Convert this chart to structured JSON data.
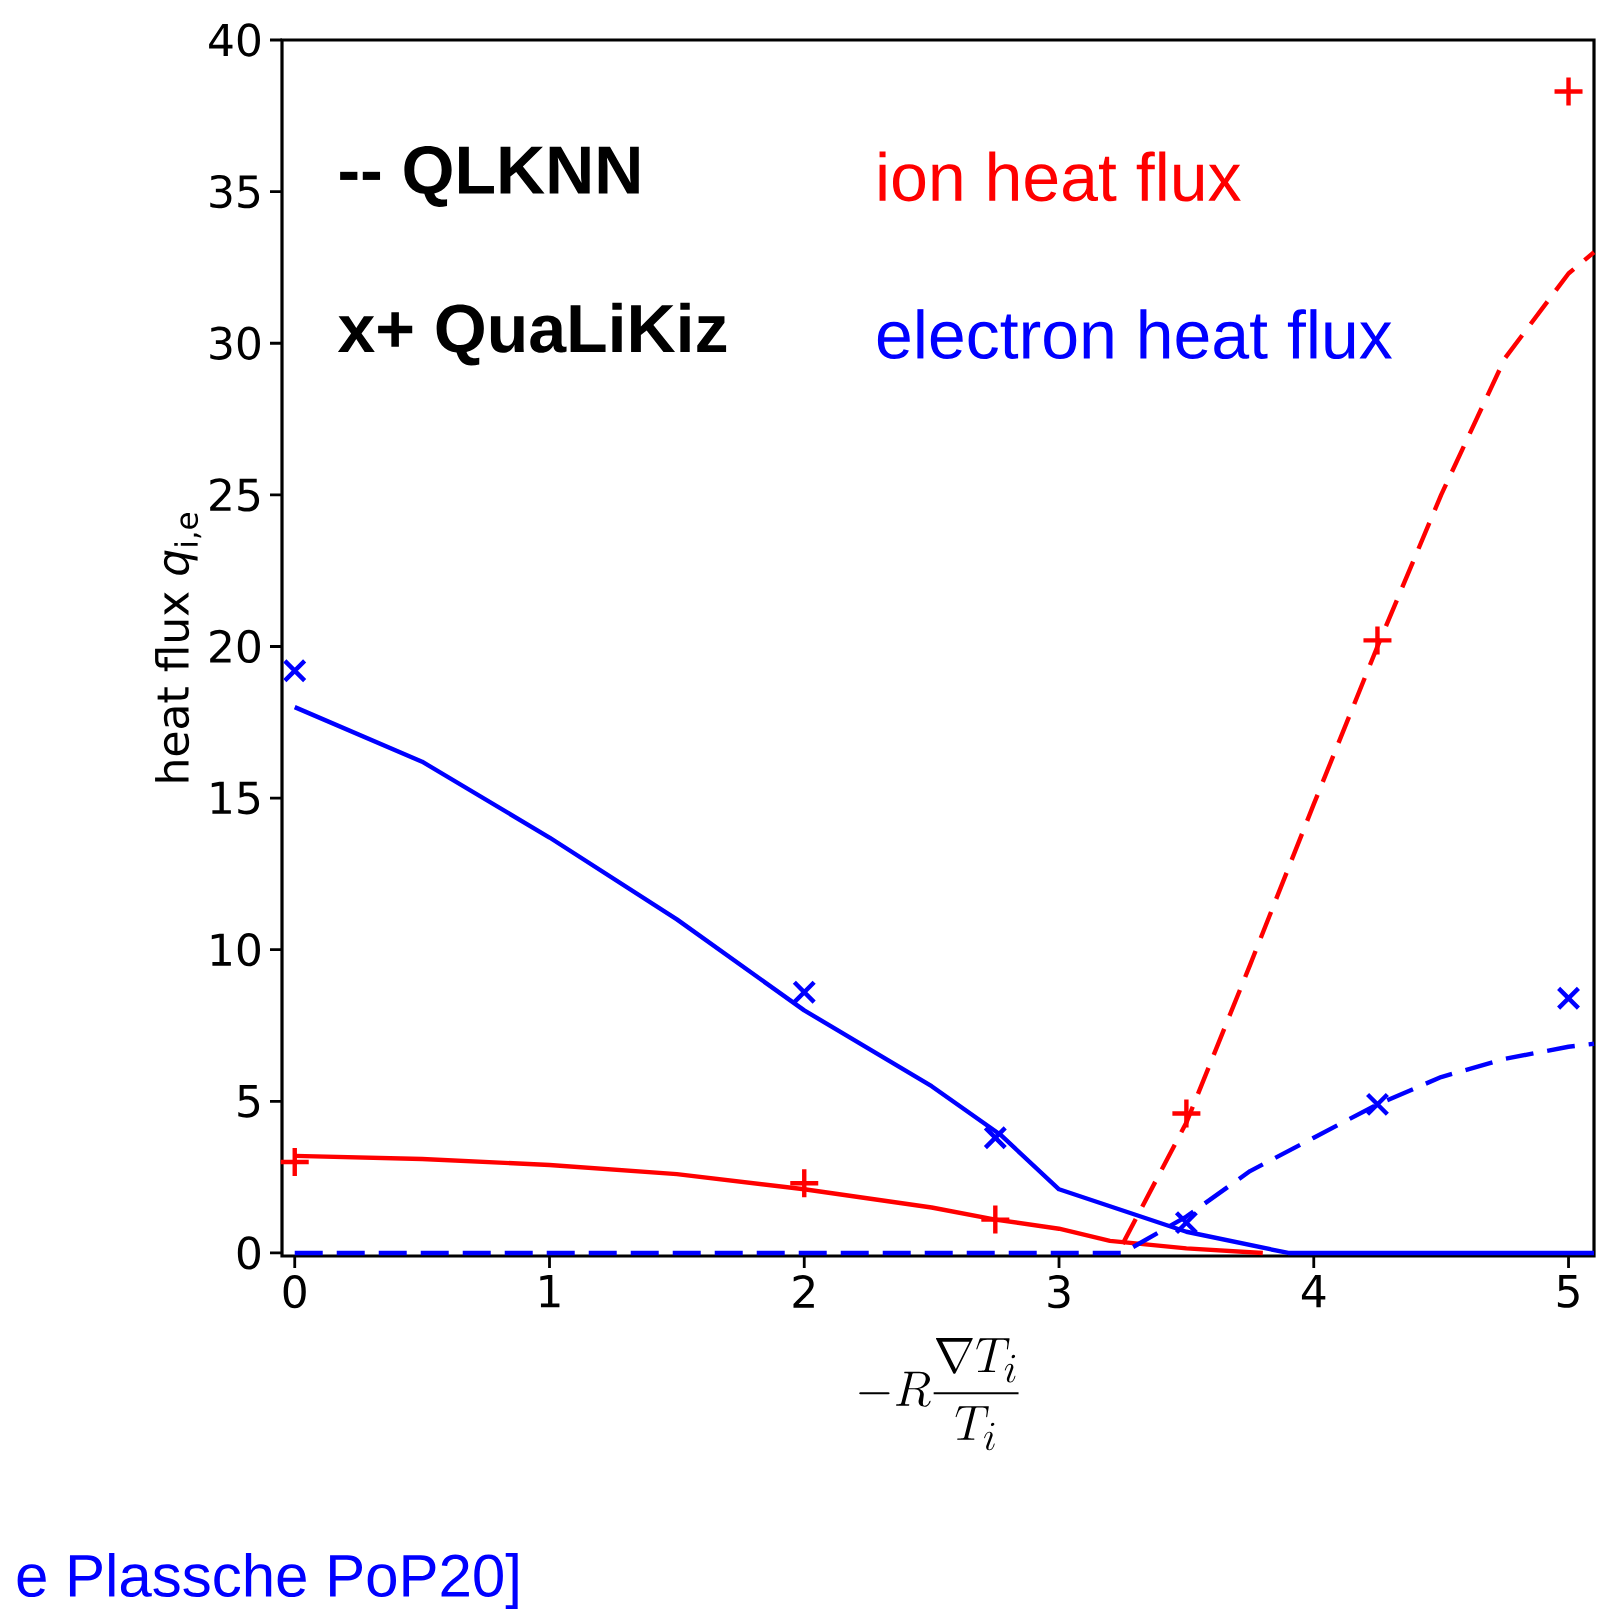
{
  "chart_data": {
    "type": "line",
    "xlabel": "-R\\frac{\\nabla T_i}{T_i}",
    "ylabel": "heat flux *q*$_{i,e}$",
    "xlim": [
      -0.05,
      5.1
    ],
    "ylim": [
      -0.1,
      40
    ],
    "xticks": [
      0,
      1,
      2,
      3,
      4,
      5
    ],
    "yticks": [
      0,
      5,
      10,
      15,
      20,
      25,
      30,
      35,
      40
    ],
    "annotations": [
      "-- QLKNN",
      "x+ QuaLiKiz",
      "e Plassche PoP20]"
    ],
    "series": [
      {
        "color": "#ff0000",
        "line_style": "solid",
        "x": [
          0,
          0.5,
          1,
          1.5,
          2,
          2.5,
          2.75,
          3,
          3.2,
          3.5,
          3.8
        ],
        "values": [
          3.2,
          3.1,
          2.9,
          2.6,
          2.1,
          1.5,
          1.1,
          0.8,
          0.4,
          0.15,
          0
        ]
      },
      {
        "color": "#ff0000",
        "line_style": "dashed",
        "x": [
          3.25,
          3.5,
          3.75,
          4,
          4.25,
          4.5,
          4.75,
          5,
          5.1
        ],
        "values": [
          0.3,
          4.3,
          9.5,
          14.8,
          20,
          25,
          29.5,
          32.3,
          33
        ]
      },
      {
        "color": "#0000ff",
        "line_style": "solid",
        "x": [
          0,
          0.5,
          1,
          1.5,
          2,
          2.5,
          2.77,
          3,
          3.5,
          3.9,
          4,
          4.5,
          5,
          5.1
        ],
        "values": [
          18,
          16.2,
          13.7,
          11,
          8,
          5.5,
          3.9,
          2.1,
          0.7,
          0,
          0,
          0,
          0,
          0
        ]
      },
      {
        "color": "#0000ff",
        "line_style": "dashed",
        "x": [
          0,
          1,
          2,
          3,
          3.25,
          3.5,
          3.75,
          4,
          4.25,
          4.5,
          4.75,
          5,
          5.1
        ],
        "values": [
          0,
          0,
          0,
          0,
          0,
          1.2,
          2.7,
          3.8,
          4.9,
          5.8,
          6.4,
          6.8,
          6.9
        ]
      },
      {
        "type": "scatter",
        "name": "ion heat flux",
        "color": "#ff0000",
        "marker": "plus",
        "x": [
          0,
          2,
          2.75,
          3.5,
          4.25,
          5
        ],
        "values": [
          3.0,
          2.3,
          1.1,
          4.6,
          20.2,
          38.3
        ]
      },
      {
        "type": "scatter",
        "name": "electron heat flux",
        "color": "#0000ff",
        "marker": "cross",
        "x": [
          0,
          2,
          2.75,
          3.5,
          4.25,
          5
        ],
        "values": [
          19.2,
          8.6,
          3.8,
          1.0,
          4.9,
          8.4
        ]
      }
    ]
  }
}
